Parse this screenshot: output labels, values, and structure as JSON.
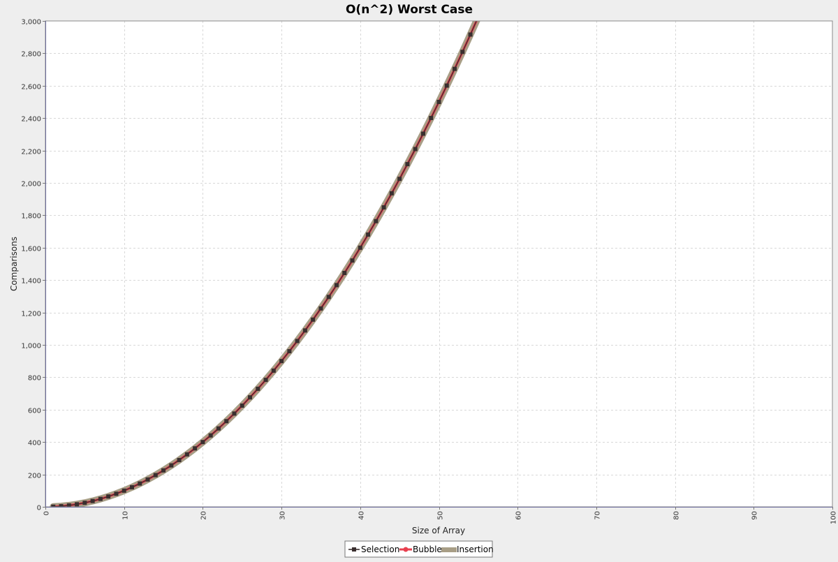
{
  "chart_data": {
    "type": "line",
    "title": "O(n^2) Worst Case",
    "xlabel": "Size of Array",
    "ylabel": "Comparisons",
    "xlim": [
      0,
      100
    ],
    "ylim": [
      0,
      3000
    ],
    "grid": true,
    "legend_position": "bottom-center",
    "x_ticks": [
      "0",
      "10",
      "20",
      "30",
      "40",
      "50",
      "60",
      "70",
      "80",
      "90",
      "100"
    ],
    "y_ticks": [
      "0",
      "200",
      "400",
      "600",
      "800",
      "1,000",
      "1,200",
      "1,400",
      "1,600",
      "1,800",
      "2,000",
      "2,200",
      "2,400",
      "2,600",
      "2,800",
      "3,000"
    ],
    "x": [
      1,
      2,
      3,
      4,
      5,
      6,
      7,
      8,
      9,
      10,
      11,
      12,
      13,
      14,
      15,
      16,
      17,
      18,
      19,
      20,
      21,
      22,
      23,
      24,
      25,
      26,
      27,
      28,
      29,
      30,
      31,
      32,
      33,
      34,
      35,
      36,
      37,
      38,
      39,
      40,
      41,
      42,
      43,
      44,
      45,
      46,
      47,
      48,
      49,
      50,
      51,
      52,
      53,
      54,
      55
    ],
    "series": [
      {
        "name": "Selection",
        "color": "#3a2f2f",
        "marker": "square",
        "values": [
          1,
          4,
          9,
          16,
          25,
          36,
          49,
          64,
          81,
          100,
          121,
          144,
          169,
          196,
          225,
          256,
          289,
          324,
          361,
          400,
          441,
          484,
          529,
          576,
          625,
          676,
          729,
          784,
          841,
          900,
          961,
          1024,
          1089,
          1156,
          1225,
          1296,
          1369,
          1444,
          1521,
          1600,
          1681,
          1764,
          1849,
          1936,
          2025,
          2116,
          2209,
          2304,
          2401,
          2500,
          2601,
          2704,
          2809,
          2916,
          3025
        ]
      },
      {
        "name": "Bubble",
        "color": "#e8404f",
        "marker": "circle",
        "values": [
          1,
          4,
          9,
          16,
          25,
          36,
          49,
          64,
          81,
          100,
          121,
          144,
          169,
          196,
          225,
          256,
          289,
          324,
          361,
          400,
          441,
          484,
          529,
          576,
          625,
          676,
          729,
          784,
          841,
          900,
          961,
          1024,
          1089,
          1156,
          1225,
          1296,
          1369,
          1444,
          1521,
          1600,
          1681,
          1764,
          1849,
          1936,
          2025,
          2116,
          2209,
          2304,
          2401,
          2500,
          2601,
          2704,
          2809,
          2916,
          3025
        ]
      },
      {
        "name": "Insertion",
        "color": "#a89e86",
        "marker": "none",
        "values": [
          1,
          4,
          9,
          16,
          25,
          36,
          49,
          64,
          81,
          100,
          121,
          144,
          169,
          196,
          225,
          256,
          289,
          324,
          361,
          400,
          441,
          484,
          529,
          576,
          625,
          676,
          729,
          784,
          841,
          900,
          961,
          1024,
          1089,
          1156,
          1225,
          1296,
          1369,
          1444,
          1521,
          1600,
          1681,
          1764,
          1849,
          1936,
          2025,
          2116,
          2209,
          2304,
          2401,
          2500,
          2601,
          2704,
          2809,
          2916,
          3025
        ]
      }
    ]
  }
}
